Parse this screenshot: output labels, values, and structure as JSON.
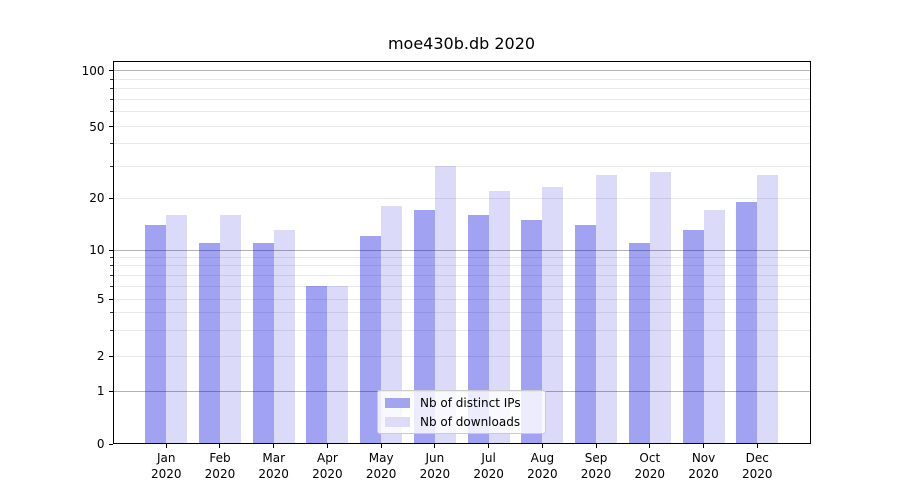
{
  "chart_data": {
    "type": "bar",
    "title": "moe430b.db 2020",
    "categories": [
      "Jan 2020",
      "Feb 2020",
      "Mar 2020",
      "Apr 2020",
      "May 2020",
      "Jun 2020",
      "Jul 2020",
      "Aug 2020",
      "Sep 2020",
      "Oct 2020",
      "Nov 2020",
      "Dec 2020"
    ],
    "series": [
      {
        "name": "Nb of distinct IPs",
        "color": "#a3a3f0",
        "values": [
          14,
          11,
          11,
          6,
          12,
          17,
          16,
          15,
          14,
          11,
          13,
          19
        ]
      },
      {
        "name": "Nb of downloads",
        "color": "#dcdcf9",
        "values": [
          16,
          16,
          13,
          6,
          18,
          30,
          22,
          23,
          27,
          28,
          17,
          27
        ]
      }
    ],
    "xlabel": "",
    "ylabel": "",
    "yscale": "asinh",
    "y_ticks": [
      0,
      1,
      2,
      5,
      10,
      20,
      50,
      100
    ],
    "ylim": [
      0,
      112
    ],
    "grid": true,
    "legend_position": "lower center"
  }
}
